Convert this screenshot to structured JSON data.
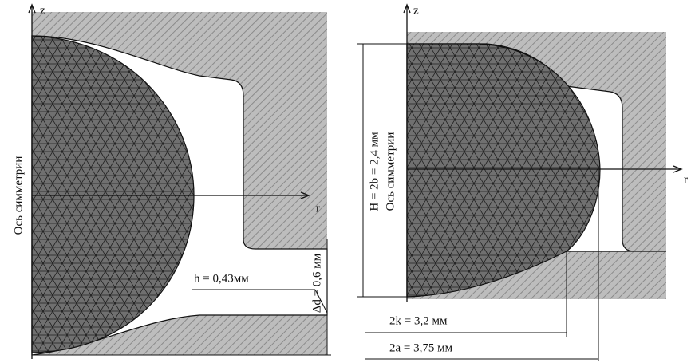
{
  "left_panel": {
    "axis_z": "z",
    "axis_r": "r",
    "symmetry_axis": "Ось симметрии",
    "h_label": "h = 0,43мм",
    "dd_label": "Δd = 0,6 мм"
  },
  "right_panel": {
    "axis_z": "z",
    "axis_r": "r",
    "symmetry_axis": "Ось симметрии",
    "H_label": "H = 2b = 2,4 мм",
    "k_label": "2k = 3,2 мм",
    "a_label": "2a = 3,75 мм"
  }
}
